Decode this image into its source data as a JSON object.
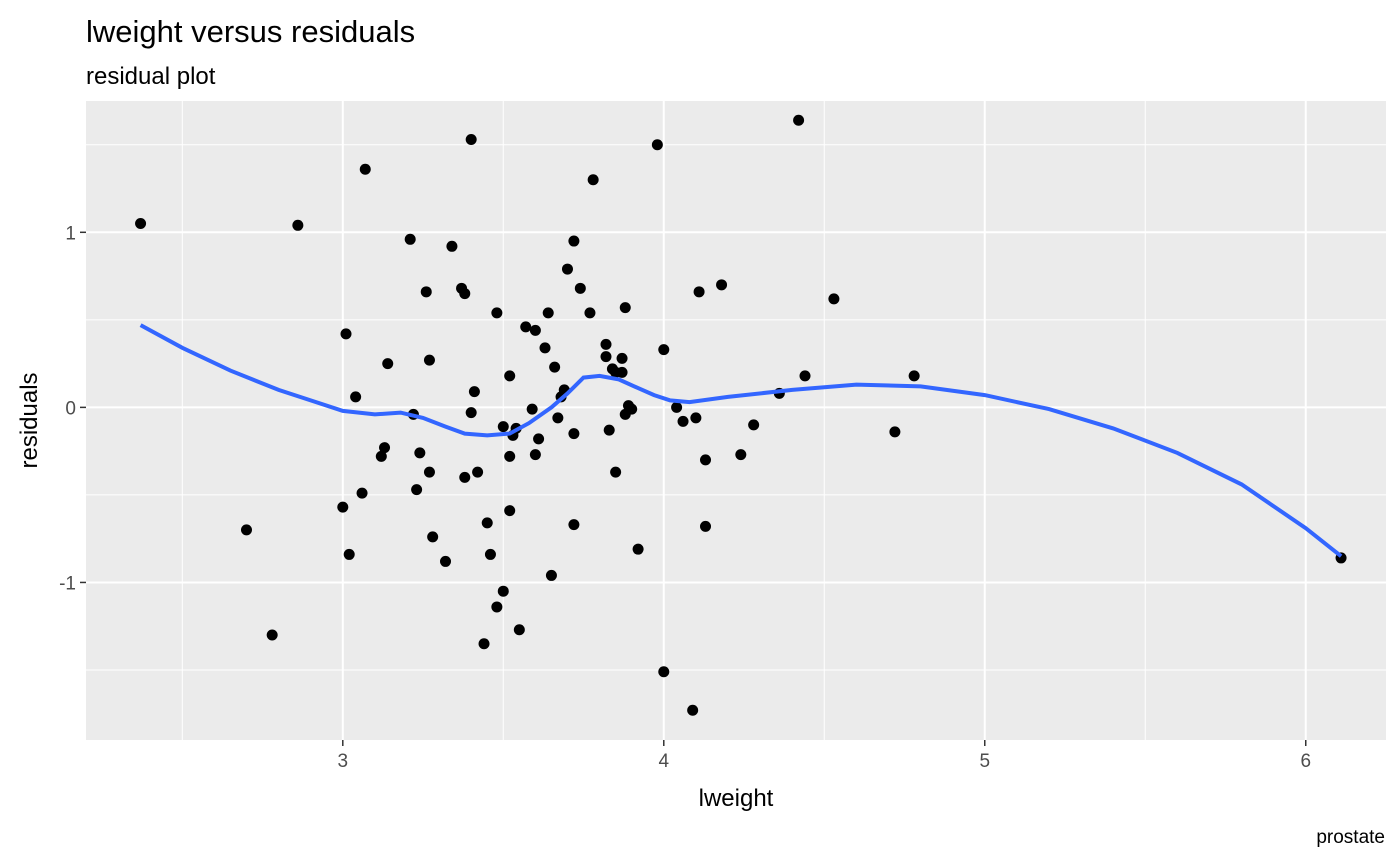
{
  "chart_data": {
    "type": "scatter",
    "title": "lweight versus residuals",
    "subtitle": "residual plot",
    "xlabel": "lweight",
    "ylabel": "residuals",
    "caption": "prostate",
    "xlim": [
      2.2,
      6.25
    ],
    "ylim": [
      -1.9,
      1.75
    ],
    "x_ticks": [
      3,
      4,
      5,
      6
    ],
    "x_tick_labels": [
      "3",
      "4",
      "5",
      "6"
    ],
    "y_ticks": [
      -1,
      0,
      1
    ],
    "y_tick_labels": [
      "-1",
      "0",
      "1"
    ],
    "x_minor": [
      2.5,
      3.5,
      4.5,
      5.5
    ],
    "y_minor": [
      -1.5,
      -0.5,
      0.5,
      1.5
    ],
    "grid": true,
    "colors": {
      "panel": "#ebebeb",
      "points": "#000000",
      "smooth": "#3366ff"
    },
    "points": [
      [
        2.37,
        1.05
      ],
      [
        2.7,
        -0.7
      ],
      [
        2.78,
        -1.3
      ],
      [
        2.86,
        1.04
      ],
      [
        3.0,
        -0.57
      ],
      [
        3.01,
        0.42
      ],
      [
        3.02,
        -0.84
      ],
      [
        3.04,
        0.06
      ],
      [
        3.06,
        -0.49
      ],
      [
        3.07,
        1.36
      ],
      [
        3.12,
        -0.28
      ],
      [
        3.13,
        -0.23
      ],
      [
        3.14,
        0.25
      ],
      [
        3.21,
        0.96
      ],
      [
        3.22,
        -0.04
      ],
      [
        3.23,
        -0.47
      ],
      [
        3.24,
        -0.26
      ],
      [
        3.26,
        0.66
      ],
      [
        3.27,
        -0.37
      ],
      [
        3.27,
        0.27
      ],
      [
        3.28,
        -0.74
      ],
      [
        3.32,
        -0.88
      ],
      [
        3.34,
        0.92
      ],
      [
        3.37,
        0.68
      ],
      [
        3.38,
        0.65
      ],
      [
        3.38,
        -0.4
      ],
      [
        3.4,
        -0.03
      ],
      [
        3.4,
        1.53
      ],
      [
        3.41,
        0.09
      ],
      [
        3.42,
        -0.37
      ],
      [
        3.44,
        -1.35
      ],
      [
        3.45,
        -0.66
      ],
      [
        3.46,
        -0.84
      ],
      [
        3.48,
        0.54
      ],
      [
        3.48,
        -1.14
      ],
      [
        3.5,
        -0.11
      ],
      [
        3.5,
        -1.05
      ],
      [
        3.52,
        0.18
      ],
      [
        3.52,
        -0.59
      ],
      [
        3.52,
        -0.28
      ],
      [
        3.53,
        -0.16
      ],
      [
        3.54,
        -0.12
      ],
      [
        3.55,
        -1.27
      ],
      [
        3.57,
        0.46
      ],
      [
        3.59,
        -0.01
      ],
      [
        3.6,
        -0.27
      ],
      [
        3.6,
        0.44
      ],
      [
        3.61,
        -0.18
      ],
      [
        3.63,
        0.34
      ],
      [
        3.64,
        0.54
      ],
      [
        3.65,
        -0.96
      ],
      [
        3.66,
        0.23
      ],
      [
        3.67,
        -0.06
      ],
      [
        3.68,
        0.06
      ],
      [
        3.69,
        0.1
      ],
      [
        3.7,
        0.79
      ],
      [
        3.72,
        0.95
      ],
      [
        3.72,
        -0.67
      ],
      [
        3.72,
        -0.15
      ],
      [
        3.74,
        0.68
      ],
      [
        3.77,
        0.54
      ],
      [
        3.78,
        1.3
      ],
      [
        3.82,
        0.36
      ],
      [
        3.82,
        0.29
      ],
      [
        3.83,
        -0.13
      ],
      [
        3.84,
        0.22
      ],
      [
        3.85,
        0.2
      ],
      [
        3.85,
        -0.37
      ],
      [
        3.87,
        0.28
      ],
      [
        3.87,
        0.2
      ],
      [
        3.88,
        0.57
      ],
      [
        3.88,
        -0.04
      ],
      [
        3.89,
        0.01
      ],
      [
        3.9,
        -0.01
      ],
      [
        3.92,
        -0.81
      ],
      [
        3.98,
        1.5
      ],
      [
        4.0,
        -1.51
      ],
      [
        4.0,
        0.33
      ],
      [
        4.04,
        0.0
      ],
      [
        4.06,
        -0.08
      ],
      [
        4.09,
        -1.73
      ],
      [
        4.1,
        -0.06
      ],
      [
        4.11,
        0.66
      ],
      [
        4.13,
        -0.3
      ],
      [
        4.13,
        -0.68
      ],
      [
        4.18,
        0.7
      ],
      [
        4.24,
        -0.27
      ],
      [
        4.28,
        -0.1
      ],
      [
        4.36,
        0.08
      ],
      [
        4.42,
        1.64
      ],
      [
        4.44,
        0.18
      ],
      [
        4.53,
        0.62
      ],
      [
        4.72,
        -0.14
      ],
      [
        4.78,
        0.18
      ],
      [
        6.11,
        -0.86
      ]
    ],
    "smooth": [
      [
        2.37,
        0.47
      ],
      [
        2.5,
        0.34
      ],
      [
        2.65,
        0.21
      ],
      [
        2.8,
        0.1
      ],
      [
        2.9,
        0.04
      ],
      [
        3.0,
        -0.02
      ],
      [
        3.1,
        -0.04
      ],
      [
        3.18,
        -0.03
      ],
      [
        3.25,
        -0.06
      ],
      [
        3.32,
        -0.11
      ],
      [
        3.38,
        -0.15
      ],
      [
        3.45,
        -0.16
      ],
      [
        3.52,
        -0.15
      ],
      [
        3.58,
        -0.09
      ],
      [
        3.65,
        0.0
      ],
      [
        3.7,
        0.08
      ],
      [
        3.75,
        0.17
      ],
      [
        3.8,
        0.18
      ],
      [
        3.86,
        0.16
      ],
      [
        3.92,
        0.11
      ],
      [
        3.97,
        0.07
      ],
      [
        4.02,
        0.04
      ],
      [
        4.08,
        0.03
      ],
      [
        4.2,
        0.06
      ],
      [
        4.4,
        0.1
      ],
      [
        4.6,
        0.13
      ],
      [
        4.8,
        0.12
      ],
      [
        5.0,
        0.07
      ],
      [
        5.2,
        -0.01
      ],
      [
        5.4,
        -0.12
      ],
      [
        5.6,
        -0.26
      ],
      [
        5.8,
        -0.44
      ],
      [
        6.0,
        -0.69
      ],
      [
        6.11,
        -0.85
      ]
    ]
  }
}
